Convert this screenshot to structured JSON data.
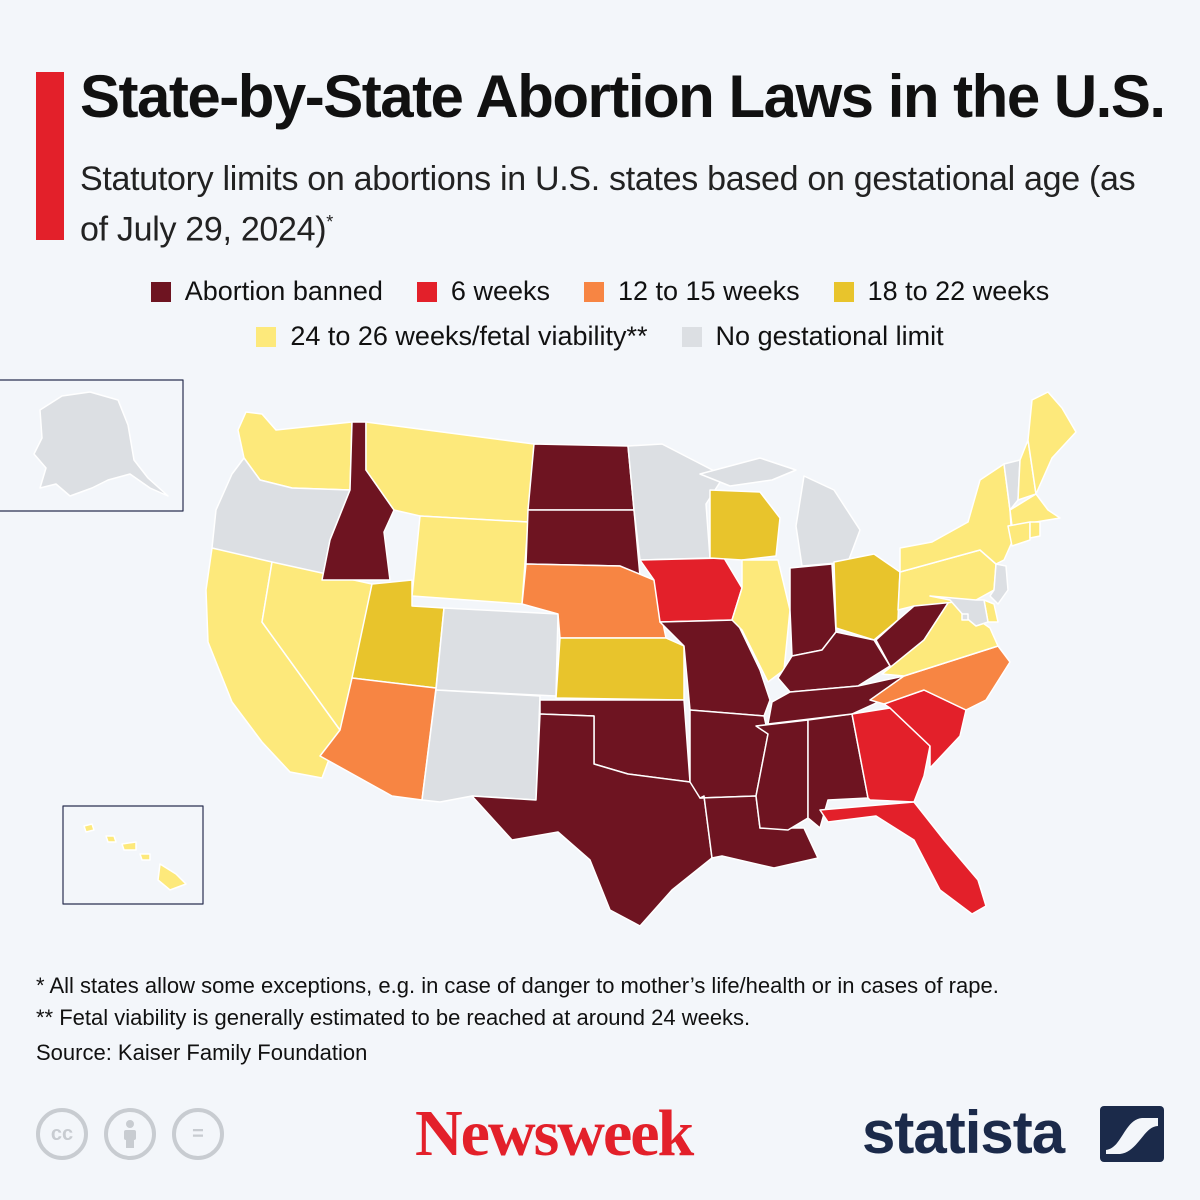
{
  "header": {
    "title": "State-by-State Abortion Laws in the U.S.",
    "subtitle": "Statutory limits on abortions in U.S. states based on gestational age (as of July 29, 2024)",
    "subtitle_mark": "*"
  },
  "legend": [
    {
      "label": "Abortion banned",
      "color": "#6e1421"
    },
    {
      "label": "6 weeks",
      "color": "#e3202a"
    },
    {
      "label": "12 to 15 weeks",
      "color": "#f78543"
    },
    {
      "label": "18 to 22 weeks",
      "color": "#e8c42c"
    },
    {
      "label": "24 to 26 weeks/fetal viability**",
      "color": "#fde97b"
    },
    {
      "label": "No gestational limit",
      "color": "#dcdfe3"
    }
  ],
  "map": {
    "categories": {
      "banned": [
        "ID",
        "ND",
        "SD",
        "MO",
        "AR",
        "OK",
        "TX",
        "LA",
        "MS",
        "AL",
        "TN",
        "KY",
        "IN",
        "WV"
      ],
      "6_weeks": [
        "IA",
        "GA",
        "SC",
        "FL"
      ],
      "12_to_15_weeks": [
        "NE",
        "AZ",
        "NC"
      ],
      "18_to_22_weeks": [
        "UT",
        "KS",
        "WI",
        "OH"
      ],
      "24_to_26_weeks": [
        "WA",
        "MT",
        "WY",
        "CA",
        "NV",
        "IL",
        "PA",
        "NY",
        "VA",
        "ME",
        "NH",
        "MA",
        "CT",
        "RI",
        "DE",
        "HI"
      ],
      "no_limit": [
        "OR",
        "CO",
        "NM",
        "MN",
        "MI",
        "VT",
        "NJ",
        "MD",
        "DC",
        "AK"
      ]
    }
  },
  "footnotes": {
    "note1": "*   All states allow some exceptions, e.g. in case of danger to mother’s life/health or in cases of rape.",
    "note2": "** Fetal viability is generally estimated to be reached at around 24 weeks.",
    "source": "Source: Kaiser Family Foundation"
  },
  "branding": {
    "newsweek": "Newsweek",
    "statista": "statista",
    "cc_icons": [
      "cc-icon",
      "attribution-icon",
      "no-derivatives-icon"
    ],
    "cc_label": "cc",
    "nd_label": "="
  }
}
